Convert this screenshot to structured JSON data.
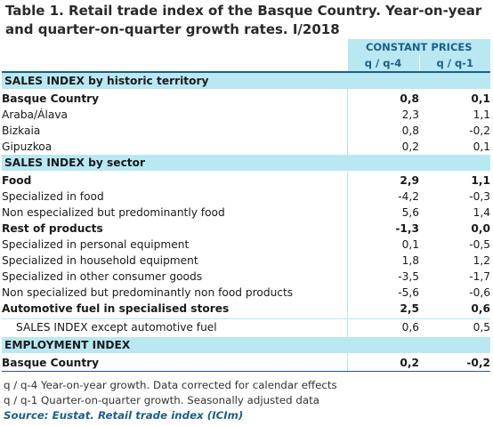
{
  "title": "Table 1. Retail trade index of the Basque Country. Year-on-year and quarter-on-quarter growth rates. I/2018",
  "header": {
    "group": "CONSTANT PRICES",
    "col1": "q / q-4",
    "col2": "q / q-1"
  },
  "sections": {
    "historic": {
      "label": "SALES INDEX by historic territory",
      "rows": [
        {
          "label": "Basque Country",
          "v1": "0,8",
          "v2": "0,1"
        },
        {
          "label": "Araba/Álava",
          "v1": "2,3",
          "v2": "1,1"
        },
        {
          "label": "Bizkaia",
          "v1": "0,8",
          "v2": "-0,2"
        },
        {
          "label": "Gipuzkoa",
          "v1": "0,2",
          "v2": "0,1"
        }
      ]
    },
    "sector": {
      "label": "SALES INDEX by sector",
      "rows": [
        {
          "label": "Food",
          "v1": "2,9",
          "v2": "1,1"
        },
        {
          "label": "Specialized in food",
          "v1": "-4,2",
          "v2": "-0,3"
        },
        {
          "label": "Non especialized but predominantly food",
          "v1": "5,6",
          "v2": "1,4"
        },
        {
          "label": "Rest of products",
          "v1": "-1,3",
          "v2": "0,0"
        },
        {
          "label": "Specialized in personal equipment",
          "v1": "0,1",
          "v2": "-0,5"
        },
        {
          "label": "Specialized in household equipment",
          "v1": "1,8",
          "v2": "1,2"
        },
        {
          "label": "Specialized in other consumer goods",
          "v1": "-3,5",
          "v2": "-1,7"
        },
        {
          "label": "Non specialized but predominantly non food products",
          "v1": "-5,6",
          "v2": "-0,6"
        },
        {
          "label": "Automotive fuel in specialised stores",
          "v1": "2,5",
          "v2": "0,6"
        }
      ]
    },
    "except": {
      "label": "SALES INDEX except automotive fuel",
      "v1": "0,6",
      "v2": "0,5"
    },
    "employment": {
      "label": "EMPLOYMENT INDEX",
      "rows": [
        {
          "label": "Basque Country",
          "v1": "0,2",
          "v2": "-0,2"
        }
      ]
    }
  },
  "notes": {
    "note1": "q / q-4 Year-on-year growth. Data corrected for calendar effects",
    "note2": "q / q-1 Quarter-on-quarter growth. Seasonally adjusted data",
    "source": "Source: Eustat. Retail trade index (ICIm)"
  }
}
